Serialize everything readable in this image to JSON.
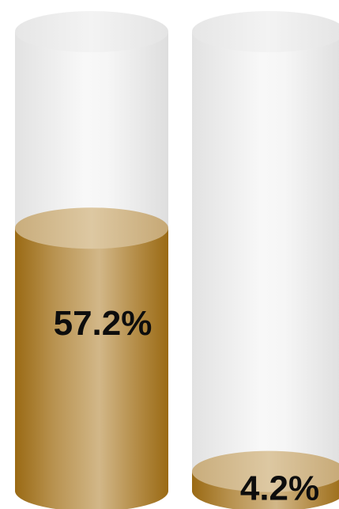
{
  "chart_data": {
    "type": "bar",
    "style": "3d-cylinder-gauge",
    "categories": [
      "",
      ""
    ],
    "values": [
      57.2,
      4.2
    ],
    "labels": [
      "57.2%",
      "4.2%"
    ],
    "ylim": [
      0,
      100
    ],
    "grid": false,
    "legend": "none",
    "colors": {
      "fill_edge": "#9a6a14",
      "fill_mid": "#d4b98a",
      "fill_top": "#dcc69e",
      "glass_edge": "#d9d9d9",
      "glass_mid": "#f7f7f7",
      "glass_top": "#efefef",
      "label": "#0d0d0d"
    }
  }
}
